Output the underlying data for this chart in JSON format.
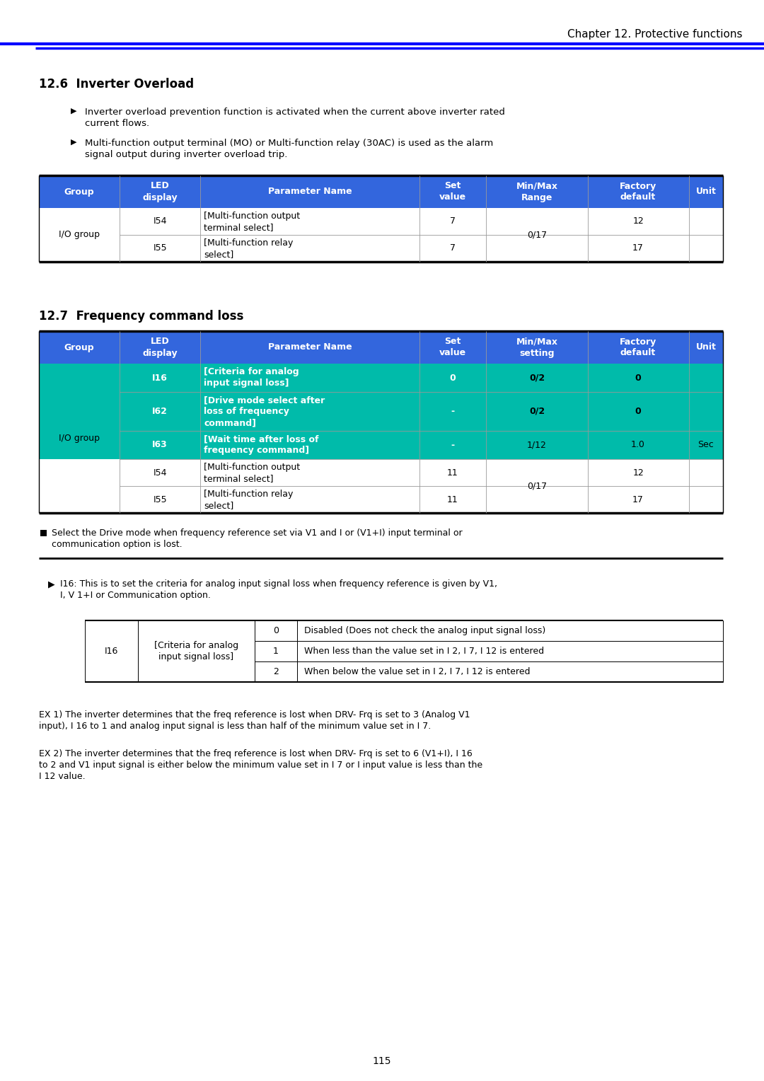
{
  "page_title": "Chapter 12. Protective functions",
  "section1_title": "12.6  Inverter Overload",
  "section1_bullets": [
    "Inverter overload prevention function is activated when the current above inverter rated\ncurrent flows.",
    "Multi-function output terminal (MO) or Multi-function relay (30AC) is used as the alarm\nsignal output during inverter overload trip."
  ],
  "table1_header": [
    "Group",
    "LED\ndisplay",
    "Parameter Name",
    "Set\nvalue",
    "Min/Max\nRange",
    "Factory\ndefault",
    "Unit"
  ],
  "table1_rows": [
    [
      "I/O group",
      "I54",
      "[Multi-function output\nterminal select]",
      "7",
      "0/17",
      "12",
      ""
    ],
    [
      "",
      "I55",
      "[Multi-function relay\nselect]",
      "7",
      "",
      "17",
      ""
    ]
  ],
  "section2_title": "12.7  Frequency command loss",
  "table2_header": [
    "Group",
    "LED\ndisplay",
    "Parameter Name",
    "Set\nvalue",
    "Min/Max\nsetting",
    "Factory\ndefault",
    "Unit"
  ],
  "table2_rows": [
    [
      "I/O group",
      "I16",
      "[Criteria for analog\ninput signal loss]",
      "0",
      "0/2",
      "0",
      ""
    ],
    [
      "",
      "I62",
      "[Drive mode select after\nloss of frequency\ncommand]",
      "-",
      "0/2",
      "0",
      ""
    ],
    [
      "",
      "I63",
      "[Wait time after loss of\nfrequency command]",
      "-",
      "1/12",
      "1.0",
      "Sec"
    ],
    [
      "",
      "I54",
      "[Multi-function output\nterminal select]",
      "11",
      "0/17",
      "12",
      ""
    ],
    [
      "",
      "I55",
      "[Multi-function relay\nselect]",
      "11",
      "",
      "17",
      ""
    ]
  ],
  "table2_teal_rows": [
    0,
    1,
    2
  ],
  "note_text": "Select the Drive mode when frequency reference set via V1 and I or (V1+I) input terminal or\ncommunication option is lost.",
  "i16_text": "I16: This is to set the criteria for analog input signal loss when frequency reference is given by V1,\nI, V 1+I or Communication option.",
  "i16_label": "I16",
  "i16_desc": "[Criteria for analog\ninput signal loss]",
  "i16_rows": [
    [
      "0",
      "Disabled (Does not check the analog input signal loss)"
    ],
    [
      "1",
      "When less than the value set in I 2, I 7, I 12 is entered"
    ],
    [
      "2",
      "When below the value set in I 2, I 7, I 12 is entered"
    ]
  ],
  "ex1": "EX 1) The inverter determines that the freq reference is lost when DRV- Frq is set to 3 (Analog V1\ninput), I 16 to 1 and analog input signal is less than half of the minimum value set in I 7.",
  "ex2": "EX 2) The inverter determines that the freq reference is lost when DRV- Frq is set to 6 (V1+I), I 16\nto 2 and V1 input signal is either below the minimum value set in I 7 or I input value is less than the\nI 12 value.",
  "page_number": "115",
  "blue_header": "#3366DD",
  "teal_color": "#00BBAA",
  "black": "#000000",
  "white": "#FFFFFF",
  "gray_line": "#999999",
  "dark_gray": "#333333"
}
